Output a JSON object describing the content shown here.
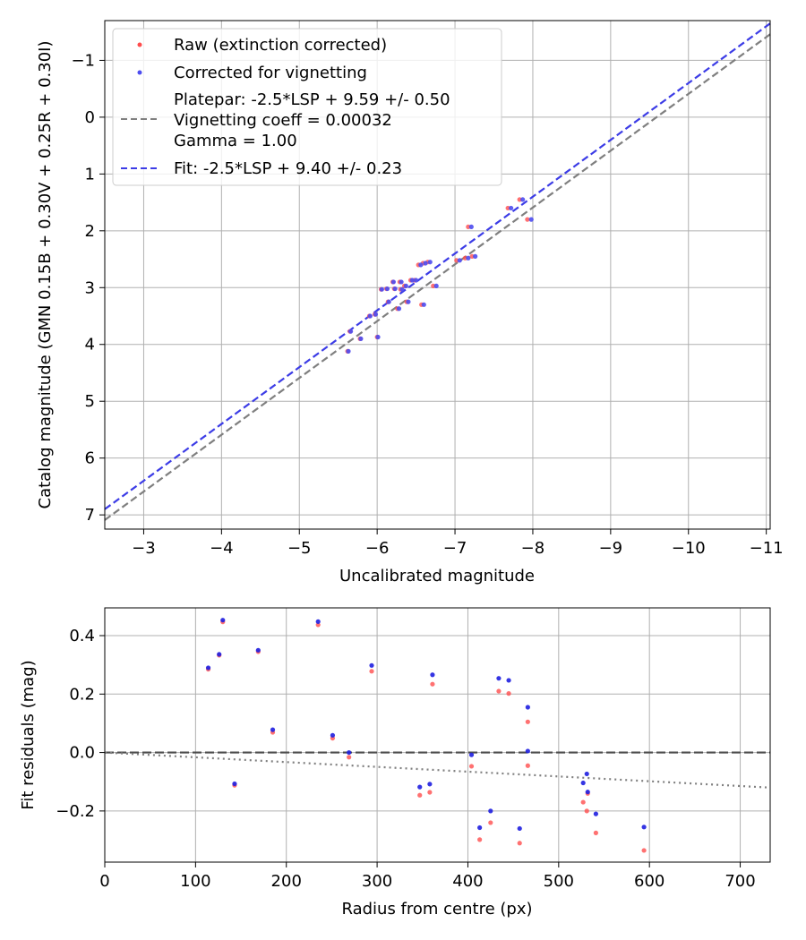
{
  "chart_data": [
    {
      "type": "scatter",
      "xlabel": "Uncalibrated magnitude",
      "ylabel": "Catalog magnitude (GMN 0.15B + 0.30V + 0.25R + 0.30I)",
      "xlim": [
        -2.5,
        -11.05
      ],
      "ylim": [
        7.25,
        -1.7
      ],
      "x_inverted": true,
      "y_inverted": true,
      "grid": true,
      "legend_position": "upper-left",
      "x_ticks": [
        -3,
        -4,
        -5,
        -6,
        -7,
        -8,
        -9,
        -10,
        -11
      ],
      "y_ticks": [
        -1,
        0,
        1,
        2,
        3,
        4,
        5,
        6,
        7
      ],
      "x_tick_labels": [
        "−3",
        "−4",
        "−5",
        "−6",
        "−7",
        "−8",
        "−9",
        "−10",
        "−11"
      ],
      "y_tick_labels": [
        "−1",
        "0",
        "1",
        "2",
        "3",
        "4",
        "5",
        "6",
        "7"
      ],
      "legend": {
        "raw": "Raw (extinction corrected)",
        "corrected": "Corrected for vignetting",
        "platepar_lines": [
          "Platepar: -2.5*LSP + 9.59 +/- 0.50",
          "Vignetting coeff = 0.00032",
          "Gamma = 1.00"
        ],
        "fit": "Fit: -2.5*LSP + 9.40 +/- 0.23"
      },
      "lines": [
        {
          "name": "platepar",
          "offset": 9.59,
          "color": "#7f7f7f",
          "style": "dashed"
        },
        {
          "name": "fit",
          "offset": 9.4,
          "color": "#3c3ce6",
          "style": "dashed"
        }
      ],
      "series": [
        {
          "name": "Raw (extinction corrected)",
          "color": "#ff4d4d",
          "points": [
            [
              -5.62,
              4.12
            ],
            [
              -5.65,
              3.77
            ],
            [
              -5.78,
              3.9
            ],
            [
              -5.9,
              3.5
            ],
            [
              -5.97,
              3.47
            ],
            [
              -6.0,
              3.87
            ],
            [
              -6.05,
              3.03
            ],
            [
              -6.12,
              3.02
            ],
            [
              -6.14,
              3.25
            ],
            [
              -6.2,
              2.9
            ],
            [
              -6.22,
              3.02
            ],
            [
              -6.26,
              3.37
            ],
            [
              -6.29,
              2.9
            ],
            [
              -6.3,
              3.03
            ],
            [
              -6.35,
              2.97
            ],
            [
              -6.38,
              3.25
            ],
            [
              -6.43,
              2.87
            ],
            [
              -6.48,
              2.87
            ],
            [
              -6.53,
              2.6
            ],
            [
              -6.57,
              3.3
            ],
            [
              -6.59,
              2.57
            ],
            [
              -6.65,
              2.55
            ],
            [
              -6.72,
              2.97
            ],
            [
              -7.02,
              2.52
            ],
            [
              -7.13,
              2.48
            ],
            [
              -7.17,
              1.93
            ],
            [
              -7.22,
              2.45
            ],
            [
              -7.68,
              1.6
            ],
            [
              -7.83,
              1.45
            ],
            [
              -7.93,
              1.8
            ]
          ]
        },
        {
          "name": "Corrected for vignetting",
          "color": "#4d4df0",
          "points": [
            [
              -5.63,
              4.12
            ],
            [
              -5.66,
              3.77
            ],
            [
              -5.79,
              3.9
            ],
            [
              -5.91,
              3.5
            ],
            [
              -5.98,
              3.47
            ],
            [
              -6.01,
              3.87
            ],
            [
              -6.06,
              3.03
            ],
            [
              -6.13,
              3.02
            ],
            [
              -6.15,
              3.25
            ],
            [
              -6.21,
              2.9
            ],
            [
              -6.23,
              3.02
            ],
            [
              -6.28,
              3.37
            ],
            [
              -6.31,
              2.9
            ],
            [
              -6.32,
              3.03
            ],
            [
              -6.37,
              2.97
            ],
            [
              -6.4,
              3.25
            ],
            [
              -6.45,
              2.87
            ],
            [
              -6.5,
              2.87
            ],
            [
              -6.56,
              2.6
            ],
            [
              -6.6,
              3.3
            ],
            [
              -6.62,
              2.57
            ],
            [
              -6.68,
              2.55
            ],
            [
              -6.76,
              2.97
            ],
            [
              -7.06,
              2.52
            ],
            [
              -7.17,
              2.48
            ],
            [
              -7.21,
              1.93
            ],
            [
              -7.26,
              2.45
            ],
            [
              -7.72,
              1.6
            ],
            [
              -7.87,
              1.45
            ],
            [
              -7.98,
              1.8
            ]
          ]
        }
      ]
    },
    {
      "type": "scatter",
      "xlabel": "Radius from centre (px)",
      "ylabel": "Fit residuals (mag)",
      "xlim": [
        0,
        733
      ],
      "ylim": [
        -0.375,
        0.495
      ],
      "grid": true,
      "x_ticks": [
        0,
        100,
        200,
        300,
        400,
        500,
        600,
        700
      ],
      "y_ticks": [
        0.4,
        0.2,
        0.0,
        -0.2
      ],
      "x_tick_labels": [
        "0",
        "100",
        "200",
        "300",
        "400",
        "500",
        "600",
        "700"
      ],
      "y_tick_labels": [
        "0.4",
        "0.2",
        "0.0",
        "−0.2"
      ],
      "lines": [
        {
          "name": "zero",
          "y": 0,
          "color": "#4d4d4d",
          "style": "dashed"
        },
        {
          "name": "vignetting-model",
          "end": [
            733,
            -0.12
          ],
          "color": "#7f7f7f",
          "style": "dotted"
        }
      ],
      "series": [
        {
          "name": "Raw (extinction corrected)",
          "color": "#ff4d4d",
          "points": [
            [
              114,
              0.285
            ],
            [
              126,
              0.333
            ],
            [
              130,
              0.447
            ],
            [
              143,
              -0.112
            ],
            [
              169,
              0.345
            ],
            [
              185,
              0.069
            ],
            [
              235,
              0.437
            ],
            [
              251,
              0.049
            ],
            [
              269,
              -0.016
            ],
            [
              294,
              0.278
            ],
            [
              347,
              -0.146
            ],
            [
              358,
              -0.136
            ],
            [
              361,
              0.234
            ],
            [
              404,
              -0.047
            ],
            [
              413,
              -0.298
            ],
            [
              425,
              -0.24
            ],
            [
              434,
              0.21
            ],
            [
              445,
              0.202
            ],
            [
              457,
              -0.31
            ],
            [
              466,
              0.105
            ],
            [
              466,
              -0.045
            ],
            [
              527,
              -0.17
            ],
            [
              531,
              -0.2
            ],
            [
              532,
              -0.14
            ],
            [
              541,
              -0.275
            ],
            [
              594,
              -0.335
            ]
          ]
        },
        {
          "name": "Corrected for vignetting",
          "color": "#1f1fe0",
          "points": [
            [
              114,
              0.29
            ],
            [
              126,
              0.336
            ],
            [
              130,
              0.453
            ],
            [
              143,
              -0.107
            ],
            [
              169,
              0.35
            ],
            [
              185,
              0.078
            ],
            [
              235,
              0.448
            ],
            [
              251,
              0.059
            ],
            [
              269,
              0.0
            ],
            [
              294,
              0.298
            ],
            [
              347,
              -0.118
            ],
            [
              358,
              -0.108
            ],
            [
              361,
              0.266
            ],
            [
              404,
              -0.008
            ],
            [
              413,
              -0.257
            ],
            [
              425,
              -0.2
            ],
            [
              434,
              0.254
            ],
            [
              445,
              0.247
            ],
            [
              457,
              -0.26
            ],
            [
              466,
              0.155
            ],
            [
              466,
              0.005
            ],
            [
              527,
              -0.104
            ],
            [
              531,
              -0.073
            ],
            [
              532,
              -0.135
            ],
            [
              541,
              -0.21
            ],
            [
              594,
              -0.255
            ]
          ]
        }
      ]
    }
  ]
}
